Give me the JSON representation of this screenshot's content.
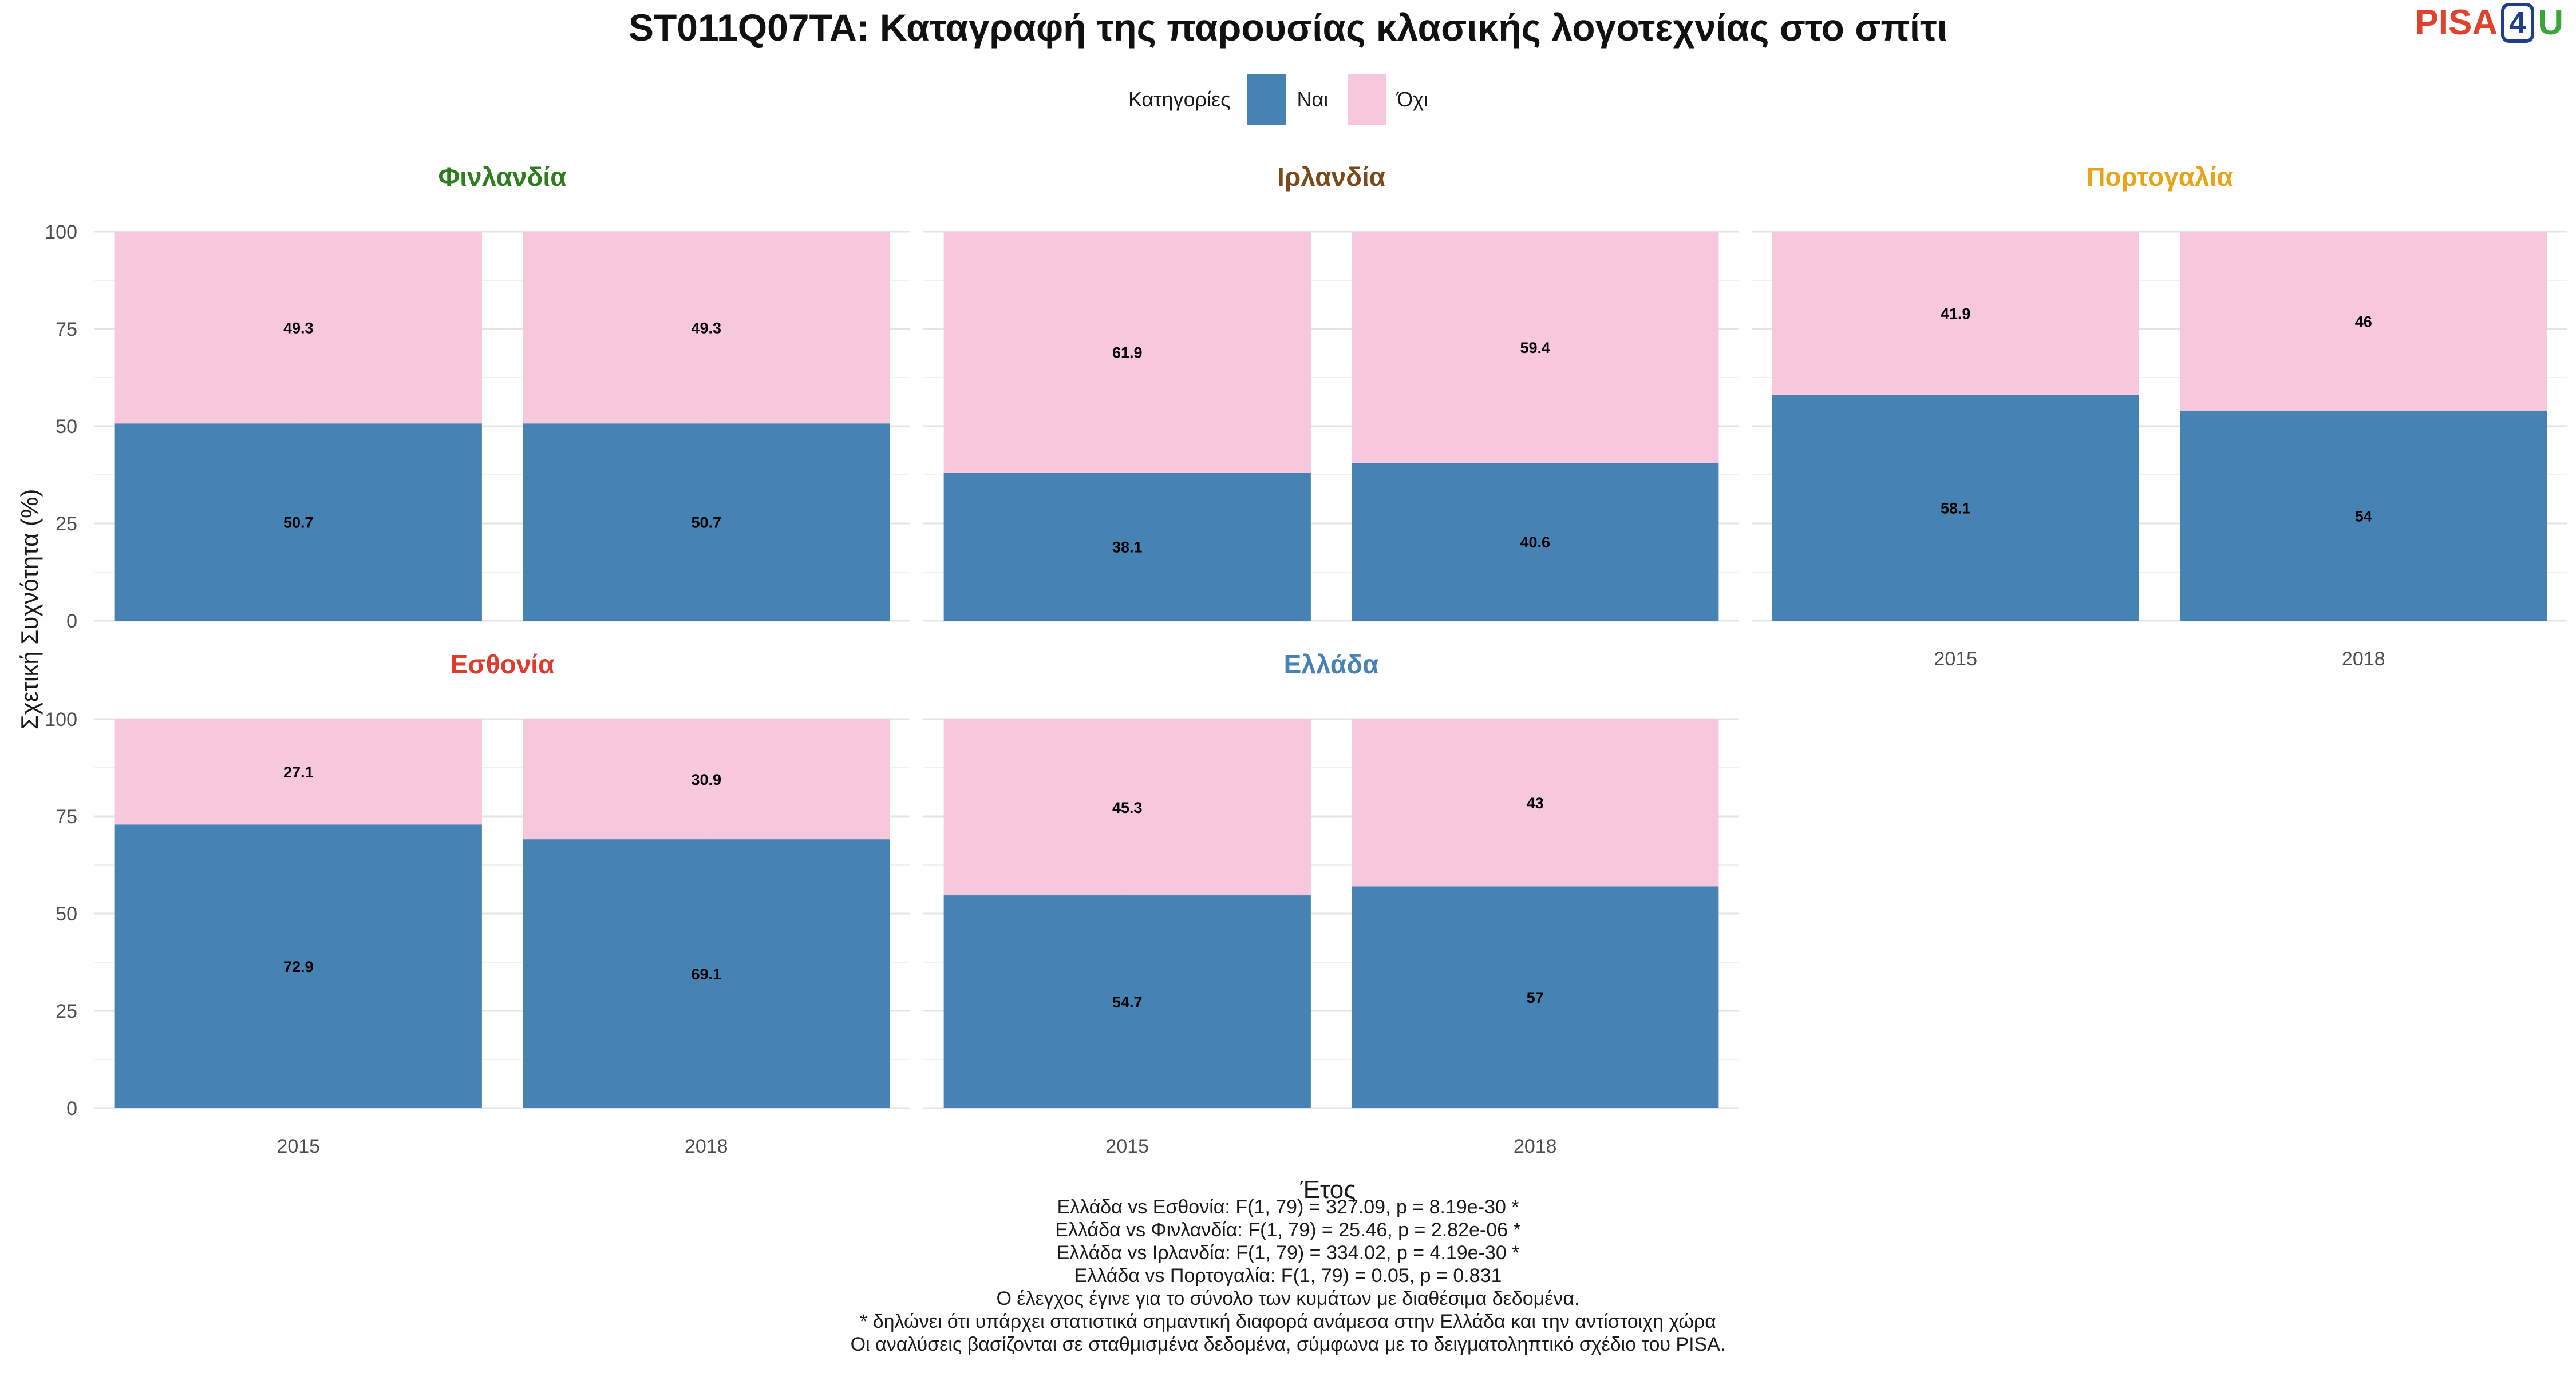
{
  "title": "ST011Q07TA: Καταγραφή της παρουσίας κλασικής λογοτεχνίας στο σπίτι",
  "logo": {
    "part1": "PISA",
    "part2": "4",
    "part3": "U"
  },
  "legend": {
    "title": "Κατηγορίες",
    "items": [
      {
        "label": "Ναι",
        "color": "#4682b4"
      },
      {
        "label": "Όχι",
        "color": "#f7c8dc"
      }
    ]
  },
  "chart_data": {
    "type": "bar",
    "stacked": true,
    "xlabel": "Έτος",
    "ylabel": "Σχετική Συχνότητα (%)",
    "ylim": [
      0,
      100
    ],
    "yticks": [
      0,
      25,
      50,
      75,
      100
    ],
    "categories": [
      "2015",
      "2018"
    ],
    "panels": [
      {
        "name": "Φινλανδία",
        "color": "#2e7d1e",
        "series": [
          {
            "name": "Ναι",
            "values": [
              50.7,
              50.7
            ]
          },
          {
            "name": "Όχι",
            "values": [
              49.3,
              49.3
            ]
          }
        ]
      },
      {
        "name": "Ιρλανδία",
        "color": "#7a4a1c",
        "series": [
          {
            "name": "Ναι",
            "values": [
              38.1,
              40.6
            ]
          },
          {
            "name": "Όχι",
            "values": [
              61.9,
              59.4
            ]
          }
        ]
      },
      {
        "name": "Πορτογαλία",
        "color": "#e8a317",
        "series": [
          {
            "name": "Ναι",
            "values": [
              58.1,
              54
            ]
          },
          {
            "name": "Όχι",
            "values": [
              41.9,
              46
            ]
          }
        ]
      },
      {
        "name": "Εσθονία",
        "color": "#e03a2f",
        "series": [
          {
            "name": "Ναι",
            "values": [
              72.9,
              69.1
            ]
          },
          {
            "name": "Όχι",
            "values": [
              27.1,
              30.9
            ]
          }
        ]
      },
      {
        "name": "Ελλάδα",
        "color": "#4682b4",
        "series": [
          {
            "name": "Ναι",
            "values": [
              54.7,
              57
            ]
          },
          {
            "name": "Όχι",
            "values": [
              45.3,
              43
            ]
          }
        ]
      }
    ],
    "grid": true,
    "legend_position": "top"
  },
  "notes": [
    "Ελλάδα vs Εσθονία: F(1, 79) = 327.09, p = 8.19e-30 *",
    "Ελλάδα vs Φινλανδία: F(1, 79) = 25.46, p = 2.82e-06 *",
    "Ελλάδα vs Ιρλανδία: F(1, 79) = 334.02, p = 4.19e-30 *",
    "Ελλάδα vs Πορτογαλία: F(1, 79) = 0.05, p = 0.831",
    "Ο έλεγχος έγινε για το σύνολο των κυμάτων με διαθέσιμα δεδομένα.",
    "* δηλώνει ότι υπάρχει στατιστικά σημαντική διαφορά ανάμεσα στην Ελλάδα και την αντίστοιχη χώρα",
    "Οι αναλύσεις βασίζονται σε σταθμισμένα δεδομένα, σύμφωνα με το δειγματοληπτικό σχέδιο του PISA."
  ]
}
